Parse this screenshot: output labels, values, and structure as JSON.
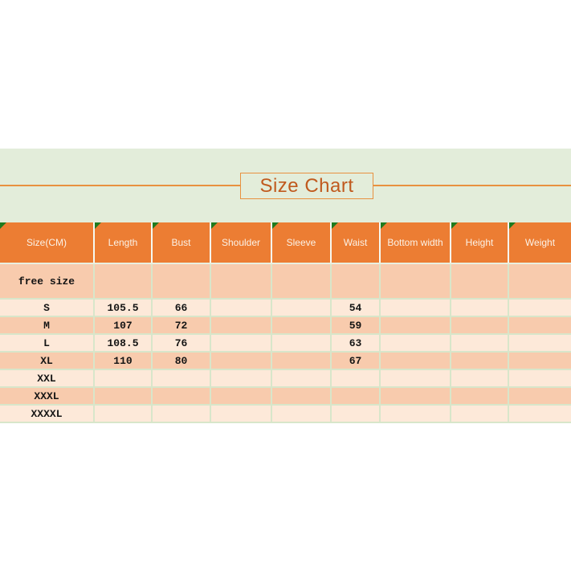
{
  "title": "Size Chart",
  "colors": {
    "band_background": "#e3edda",
    "title_text": "#c05a1e",
    "title_border": "#e8913f",
    "header_background": "#ec7d33",
    "header_text": "#fbf2e7",
    "row_dark": "#f8cbad",
    "row_light": "#fde9d9",
    "gridline": "#d8e6ca",
    "corner_triangle": "#1e7a1e",
    "body_text": "#141414"
  },
  "icons": {
    "header_corner_marker": "error-indicator-triangle"
  },
  "table": {
    "headers": [
      "Size(CM)",
      "Length",
      "Bust",
      "Shoulder",
      "Sleeve",
      "Waist",
      "Bottom width",
      "Height",
      "Weight"
    ],
    "rows": [
      {
        "size": "free size",
        "values": [
          "",
          "",
          "",
          "",
          "",
          "",
          "",
          ""
        ]
      },
      {
        "size": "S",
        "values": [
          "105.5",
          "66",
          "",
          "",
          "54",
          "",
          "",
          ""
        ]
      },
      {
        "size": "M",
        "values": [
          "107",
          "72",
          "",
          "",
          "59",
          "",
          "",
          ""
        ]
      },
      {
        "size": "L",
        "values": [
          "108.5",
          "76",
          "",
          "",
          "63",
          "",
          "",
          ""
        ]
      },
      {
        "size": "XL",
        "values": [
          "110",
          "80",
          "",
          "",
          "67",
          "",
          "",
          ""
        ]
      },
      {
        "size": "XXL",
        "values": [
          "",
          "",
          "",
          "",
          "",
          "",
          "",
          ""
        ]
      },
      {
        "size": "XXXL",
        "values": [
          "",
          "",
          "",
          "",
          "",
          "",
          "",
          ""
        ]
      },
      {
        "size": "XXXXL",
        "values": [
          "",
          "",
          "",
          "",
          "",
          "",
          "",
          ""
        ]
      }
    ]
  },
  "chart_data": {
    "type": "table",
    "title": "Size Chart",
    "unit": "CM",
    "columns": [
      "Size(CM)",
      "Length",
      "Bust",
      "Shoulder",
      "Sleeve",
      "Waist",
      "Bottom width",
      "Height",
      "Weight"
    ],
    "rows": [
      [
        "free size",
        "",
        "",
        "",
        "",
        "",
        "",
        "",
        ""
      ],
      [
        "S",
        "105.5",
        "66",
        "",
        "",
        "54",
        "",
        "",
        ""
      ],
      [
        "M",
        "107",
        "72",
        "",
        "",
        "59",
        "",
        "",
        ""
      ],
      [
        "L",
        "108.5",
        "76",
        "",
        "",
        "63",
        "",
        "",
        ""
      ],
      [
        "XL",
        "110",
        "80",
        "",
        "",
        "67",
        "",
        "",
        ""
      ],
      [
        "XXL",
        "",
        "",
        "",
        "",
        "",
        "",
        "",
        ""
      ],
      [
        "XXXL",
        "",
        "",
        "",
        "",
        "",
        "",
        "",
        ""
      ],
      [
        "XXXXL",
        "",
        "",
        "",
        "",
        "",
        "",
        "",
        ""
      ]
    ]
  }
}
